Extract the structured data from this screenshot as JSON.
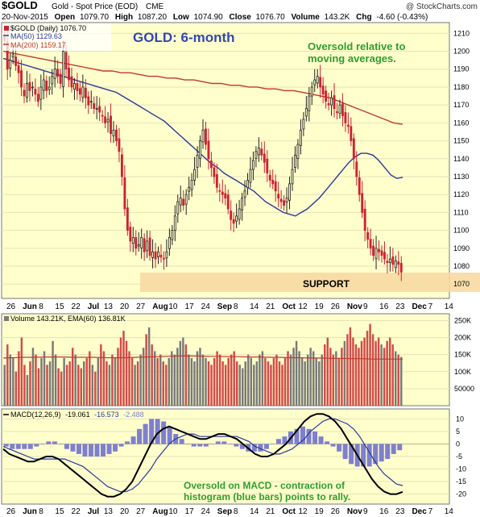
{
  "header": {
    "symbol": "$GOLD",
    "name": "Gold - Spot Price (EOD)",
    "exchange": "CME",
    "watermark": "@ StockCharts.com",
    "date": "20-Nov-2015",
    "open_label": "Open",
    "open": "1079.70",
    "high_label": "High",
    "high": "1087.20",
    "low_label": "Low",
    "low": "1074.90",
    "close_label": "Close",
    "close": "1076.70",
    "volume_label": "Volume",
    "volume": "143.2K",
    "chg_label": "Chg",
    "chg": "-4.60 (-0.43%)"
  },
  "colors": {
    "panel_bg": "#FFFFCC",
    "up_candle": "#222222",
    "down_candle": "#CC2233",
    "ma50": "#2A3A9C",
    "ma200": "#C0392B",
    "support_band": "#F8D9A2",
    "annotation_green": "#2E9E2E",
    "title_blue": "#3347B0",
    "volume_up": "#7A7A7A",
    "volume_down": "#D24B4B",
    "histogram": "#7F7FD0"
  },
  "chart_data": [
    {
      "type": "candlestick",
      "legend": {
        "price_label": "$GOLD (Daily) 1076.70",
        "ma50_label": "MA(50) 1129.63",
        "ma200_label": "MA(200) 1159.17"
      },
      "title": "GOLD: 6-month",
      "annotation": [
        "Oversold relative to",
        "moving  averages."
      ],
      "support_label": "SUPPORT",
      "support_range": [
        1062,
        1072
      ],
      "ylim": [
        1062,
        1216
      ],
      "y_ticks": [
        1070,
        1080,
        1090,
        1100,
        1110,
        1120,
        1130,
        1140,
        1150,
        1160,
        1170,
        1180,
        1190,
        1200,
        1210
      ],
      "x_ticks": [
        "26",
        "Jun",
        "8",
        "15",
        "22",
        "Jul",
        "13",
        "20",
        "27",
        "Aug",
        "10",
        "17",
        "24",
        "Sep",
        "8",
        "14",
        "21",
        "Oct",
        "12",
        "19",
        "26",
        "Nov",
        "9",
        "16",
        "23",
        "Dec",
        "7",
        "14"
      ],
      "closes": [
        1206,
        1190,
        1195,
        1198,
        1192,
        1188,
        1180,
        1175,
        1182,
        1178,
        1180,
        1176,
        1172,
        1180,
        1184,
        1178,
        1180,
        1186,
        1190,
        1186,
        1182,
        1200,
        1190,
        1184,
        1180,
        1182,
        1178,
        1176,
        1180,
        1174,
        1170,
        1172,
        1168,
        1168,
        1166,
        1164,
        1160,
        1162,
        1154,
        1156,
        1150,
        1144,
        1130,
        1112,
        1100,
        1094,
        1096,
        1090,
        1092,
        1096,
        1088,
        1094,
        1086,
        1088,
        1084,
        1088,
        1085,
        1084,
        1088,
        1096,
        1100,
        1108,
        1116,
        1118,
        1114,
        1120,
        1124,
        1128,
        1134,
        1142,
        1150,
        1156,
        1148,
        1140,
        1135,
        1130,
        1124,
        1122,
        1120,
        1118,
        1112,
        1106,
        1104,
        1108,
        1112,
        1118,
        1122,
        1128,
        1134,
        1139,
        1144,
        1146,
        1142,
        1138,
        1132,
        1128,
        1126,
        1122,
        1118,
        1116,
        1114,
        1118,
        1126,
        1134,
        1142,
        1148,
        1156,
        1162,
        1168,
        1175,
        1180,
        1184,
        1186,
        1180,
        1176,
        1172,
        1170,
        1174,
        1168,
        1166,
        1170,
        1164,
        1160,
        1158,
        1150,
        1140,
        1130,
        1120,
        1110,
        1100,
        1095,
        1090,
        1086,
        1090,
        1088,
        1086,
        1084,
        1082,
        1084,
        1081,
        1083,
        1081,
        1076.7
      ],
      "ma50": [
        1196,
        1195,
        1194,
        1193,
        1192,
        1191,
        1190,
        1189,
        1188,
        1187,
        1186,
        1185,
        1184,
        1183,
        1182,
        1181,
        1180,
        1179,
        1178,
        1177,
        1175,
        1173,
        1171,
        1169,
        1167,
        1165,
        1163,
        1161,
        1158,
        1155,
        1152,
        1149,
        1146,
        1143,
        1140,
        1137,
        1135,
        1132,
        1130,
        1128,
        1126,
        1124,
        1122,
        1119,
        1116,
        1114,
        1112,
        1110,
        1109,
        1108,
        1110,
        1112,
        1115,
        1118,
        1122,
        1126,
        1130,
        1134,
        1138,
        1141,
        1143,
        1143,
        1142,
        1139,
        1135,
        1131,
        1129,
        1129.6
      ],
      "ma200": [
        1200,
        1199,
        1198,
        1197,
        1196,
        1195,
        1194,
        1193,
        1192,
        1191,
        1190,
        1189,
        1189,
        1188,
        1188,
        1187,
        1186,
        1186,
        1185,
        1185,
        1184,
        1184,
        1183,
        1182,
        1182,
        1181,
        1181,
        1180,
        1180,
        1179,
        1179,
        1178,
        1178,
        1177,
        1176,
        1175,
        1174,
        1172,
        1170,
        1168,
        1166,
        1164,
        1162,
        1160,
        1159.2
      ]
    },
    {
      "type": "bar",
      "legend": "Volume 143.21K, EMA(60) 136.81K",
      "y_ticks": [
        "250K",
        "200K",
        "150K",
        "100K",
        "50000"
      ],
      "y_tick_values": [
        250,
        200,
        150,
        100,
        50
      ],
      "ylim": [
        0,
        270
      ],
      "volumes_k": [
        120,
        180,
        150,
        140,
        100,
        160,
        200,
        120,
        90,
        130,
        170,
        150,
        110,
        140,
        160,
        120,
        130,
        190,
        150,
        110,
        100,
        140,
        120,
        130,
        170,
        150,
        120,
        110,
        130,
        140,
        160,
        120,
        100,
        140,
        180,
        160,
        130,
        120,
        150,
        140,
        170,
        200,
        220,
        190,
        160,
        140,
        120,
        130,
        150,
        170,
        210,
        230,
        180,
        160,
        140,
        150,
        130,
        120,
        140,
        160,
        150,
        170,
        190,
        200,
        180,
        150,
        140,
        130,
        160,
        170,
        150,
        140,
        130,
        120,
        140,
        160,
        150,
        130,
        120,
        140,
        150,
        160,
        130,
        120,
        110,
        130,
        150,
        140,
        120,
        130,
        150,
        160,
        140,
        130,
        120,
        140,
        150,
        130,
        120,
        140,
        160,
        150,
        170,
        190,
        160,
        140,
        130,
        150,
        170,
        160,
        140,
        130,
        150,
        180,
        200,
        170,
        150,
        160,
        140,
        170,
        190,
        210,
        230,
        200,
        180,
        170,
        190,
        200,
        220,
        240,
        210,
        190,
        200,
        180,
        170,
        190,
        200,
        180,
        160,
        150,
        143.2
      ],
      "ema60_k": [
        140,
        141,
        142,
        142,
        143,
        143,
        143,
        142,
        142,
        142,
        141,
        141,
        141,
        142,
        143,
        144,
        145,
        146,
        146,
        146,
        145,
        145,
        144,
        144,
        143,
        143,
        142,
        142,
        141,
        141,
        140,
        140,
        139,
        139,
        138,
        138,
        137,
        137,
        137,
        136.8
      ]
    },
    {
      "type": "line",
      "legend_prefix": "MACD(12,26,9)",
      "legend_values": [
        "-19.061",
        "-16.573",
        "-2.488"
      ],
      "y_ticks": [
        10,
        5,
        0,
        -5,
        -10,
        -15,
        -20
      ],
      "ylim": [
        -24,
        14
      ],
      "macd": [
        -2,
        -4,
        -5,
        -6,
        -7,
        -7,
        -6,
        -5,
        -5,
        -6,
        -8,
        -10,
        -12,
        -14,
        -16,
        -18,
        -20,
        -21,
        -21,
        -20,
        -18,
        -15,
        -10,
        -5,
        0,
        4,
        6,
        7,
        6,
        5,
        4,
        3,
        2,
        2,
        3,
        4,
        4,
        3,
        2,
        0,
        -2,
        -4,
        -5,
        -5,
        -4,
        -2,
        0,
        3,
        6,
        9,
        11,
        12,
        12,
        11,
        9,
        6,
        2,
        -2,
        -6,
        -10,
        -14,
        -17,
        -19,
        -20,
        -20,
        -19.1
      ],
      "signal": [
        -1,
        -2,
        -3,
        -4,
        -5,
        -6,
        -6,
        -6,
        -6,
        -6,
        -6,
        -7,
        -8,
        -9,
        -11,
        -13,
        -15,
        -17,
        -18,
        -19,
        -19,
        -18,
        -16,
        -13,
        -10,
        -6,
        -3,
        0,
        2,
        3,
        4,
        4,
        3,
        3,
        3,
        3,
        3,
        3,
        3,
        2,
        1,
        -1,
        -2,
        -3,
        -4,
        -4,
        -3,
        -2,
        0,
        2,
        5,
        7,
        9,
        10,
        10,
        9,
        8,
        6,
        3,
        -1,
        -5,
        -9,
        -12,
        -14,
        -16,
        -16.6
      ],
      "annotation": [
        "Oversold on MACD - contraction of",
        "histogram (blue bars) points to rally."
      ]
    }
  ],
  "x_axis_bottom": [
    "26",
    "Jun",
    "8",
    "15",
    "22",
    "Jul",
    "13",
    "20",
    "27",
    "Aug",
    "10",
    "17",
    "24",
    "Sep",
    "8",
    "14",
    "21",
    "Oct",
    "12",
    "19",
    "26",
    "Nov",
    "9",
    "16",
    "23",
    "Dec",
    "7",
    "14"
  ]
}
